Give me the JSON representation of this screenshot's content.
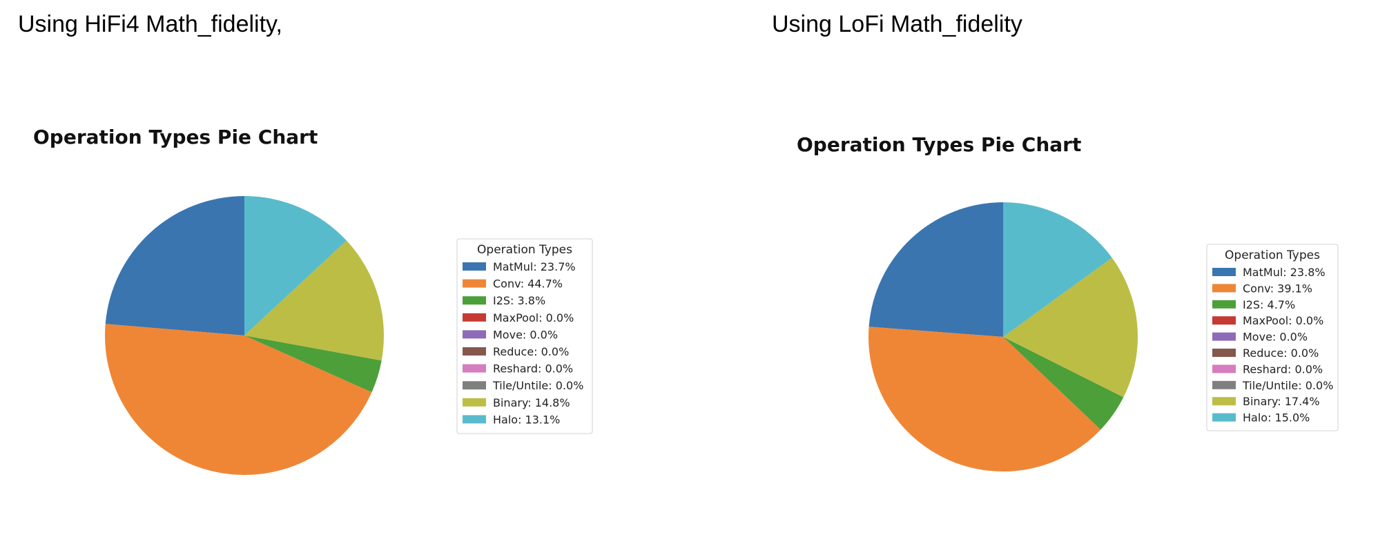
{
  "captions": {
    "left": "Using HiFi4 Math_fidelity,",
    "right": "Using LoFi Math_fidelity"
  },
  "chart_data": [
    {
      "type": "pie",
      "title": "Operation Types Pie Chart",
      "legend_title": "Operation Types",
      "legend_placement": "right",
      "slices": [
        {
          "name": "MatMul",
          "value": 23.7,
          "label": "MatMul: 23.7%",
          "color": "#3a75b0"
        },
        {
          "name": "Conv",
          "value": 44.7,
          "label": "Conv: 44.7%",
          "color": "#ef8636"
        },
        {
          "name": "I2S",
          "value": 3.8,
          "label": "I2S: 3.8%",
          "color": "#4d9f3a"
        },
        {
          "name": "MaxPool",
          "value": 0.0,
          "label": "MaxPool: 0.0%",
          "color": "#c53a32"
        },
        {
          "name": "Move",
          "value": 0.0,
          "label": "Move: 0.0%",
          "color": "#8d6bb8"
        },
        {
          "name": "Reduce",
          "value": 0.0,
          "label": "Reduce: 0.0%",
          "color": "#85584d"
        },
        {
          "name": "Reshard",
          "value": 0.0,
          "label": "Reshard: 0.0%",
          "color": "#d57dbe"
        },
        {
          "name": "Tile/Untile",
          "value": 0.0,
          "label": "Tile/Untile: 0.0%",
          "color": "#7f7f7f"
        },
        {
          "name": "Binary",
          "value": 14.8,
          "label": "Binary: 14.8%",
          "color": "#bcbd45"
        },
        {
          "name": "Halo",
          "value": 13.1,
          "label": "Halo: 13.1%",
          "color": "#58bbcc"
        }
      ]
    },
    {
      "type": "pie",
      "title": "Operation Types Pie Chart",
      "legend_title": "Operation Types",
      "legend_placement": "right",
      "slices": [
        {
          "name": "MatMul",
          "value": 23.8,
          "label": "MatMul: 23.8%",
          "color": "#3a75b0"
        },
        {
          "name": "Conv",
          "value": 39.1,
          "label": "Conv: 39.1%",
          "color": "#ef8636"
        },
        {
          "name": "I2S",
          "value": 4.7,
          "label": "I2S: 4.7%",
          "color": "#4d9f3a"
        },
        {
          "name": "MaxPool",
          "value": 0.0,
          "label": "MaxPool: 0.0%",
          "color": "#c53a32"
        },
        {
          "name": "Move",
          "value": 0.0,
          "label": "Move: 0.0%",
          "color": "#8d6bb8"
        },
        {
          "name": "Reduce",
          "value": 0.0,
          "label": "Reduce: 0.0%",
          "color": "#85584d"
        },
        {
          "name": "Reshard",
          "value": 0.0,
          "label": "Reshard: 0.0%",
          "color": "#d57dbe"
        },
        {
          "name": "Tile/Untile",
          "value": 0.0,
          "label": "Tile/Untile: 0.0%",
          "color": "#7f7f7f"
        },
        {
          "name": "Binary",
          "value": 17.4,
          "label": "Binary: 17.4%",
          "color": "#bcbd45"
        },
        {
          "name": "Halo",
          "value": 15.0,
          "label": "Halo: 15.0%",
          "color": "#58bbcc"
        }
      ]
    }
  ]
}
